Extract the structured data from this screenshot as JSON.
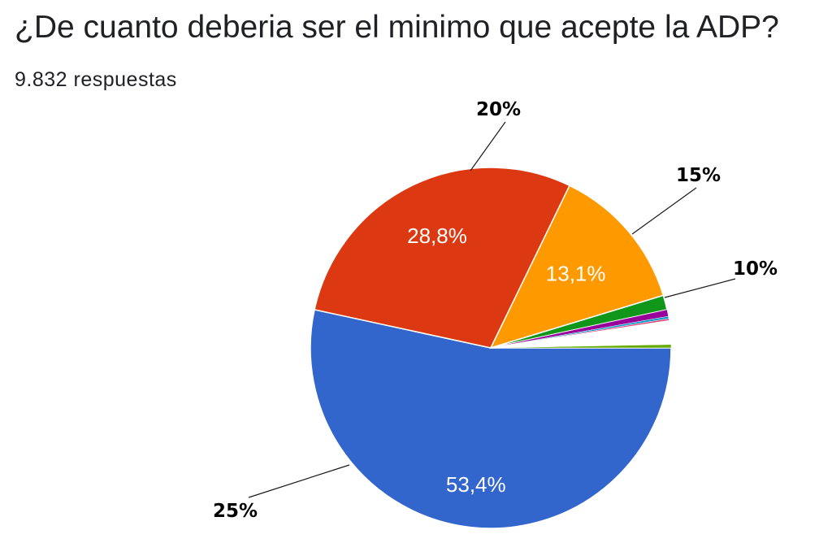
{
  "title": "¿De cuanto deberia ser el minimo que acepte la ADP?",
  "subtitle": "9.832 respuestas",
  "chart_data": {
    "type": "pie",
    "slices": [
      {
        "value": 53.4,
        "label": "53,4%",
        "color": "#3366cc"
      },
      {
        "value": 28.8,
        "label": "28,8%",
        "color": "#dc3912"
      },
      {
        "value": 13.1,
        "label": "13,1%",
        "color": "#ff9900"
      },
      {
        "value": 1.3,
        "label": "",
        "color": "#109618"
      },
      {
        "value": 0.6,
        "label": "",
        "color": "#990099"
      },
      {
        "value": 0.2,
        "label": "",
        "color": "#0099c6"
      },
      {
        "value": 0.2,
        "label": "",
        "color": "#dd4477"
      },
      {
        "value": 2.1,
        "label": "",
        "color": "#ffffff"
      },
      {
        "value": 0.3,
        "label": "",
        "color": "#66aa00"
      }
    ],
    "annotations": [
      {
        "text": "25%"
      },
      {
        "text": "20%"
      },
      {
        "text": "15%"
      },
      {
        "text": "10%"
      }
    ]
  }
}
